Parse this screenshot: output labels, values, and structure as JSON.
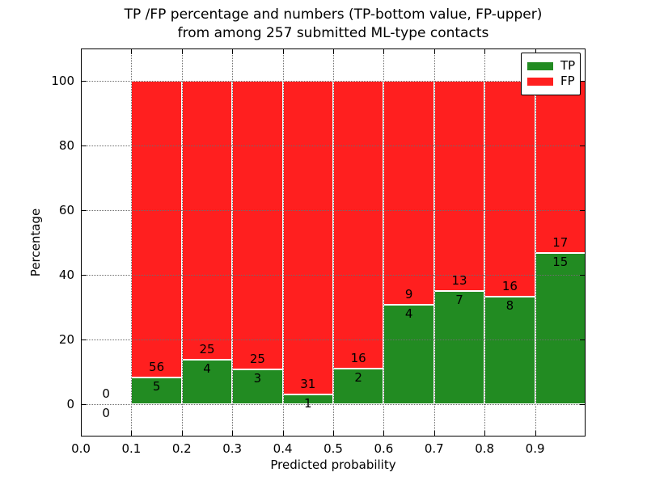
{
  "chart_data": {
    "type": "bar",
    "stacked": true,
    "title_lines": [
      "TP /FP percentage and numbers (TP-bottom value, FP-upper)",
      "from among 257 submitted ML-type contacts"
    ],
    "xlabel": "Predicted probability",
    "ylabel": "Percentage",
    "total_contacts": 257,
    "xlim": [
      0.0,
      1.0
    ],
    "ylim": [
      -10,
      110
    ],
    "xtick_values": [
      0.0,
      0.1,
      0.2,
      0.3,
      0.4,
      0.5,
      0.6,
      0.7,
      0.8,
      0.9
    ],
    "xtick_labels": [
      "0.0",
      "0.1",
      "0.2",
      "0.3",
      "0.4",
      "0.5",
      "0.6",
      "0.7",
      "0.8",
      "0.9"
    ],
    "ytick_values": [
      0,
      20,
      40,
      60,
      80,
      100
    ],
    "ytick_labels": [
      "0",
      "20",
      "40",
      "60",
      "80",
      "100"
    ],
    "grid": "dotted",
    "legend_position": "upper right",
    "series": [
      {
        "name": "TP",
        "color": "#228b22"
      },
      {
        "name": "FP",
        "color": "#ff1f1f"
      }
    ],
    "bins": [
      {
        "x0": 0.0,
        "x1": 0.1,
        "tp_count": 0,
        "fp_count": 0,
        "tp_pct": 0.0
      },
      {
        "x0": 0.1,
        "x1": 0.2,
        "tp_count": 5,
        "fp_count": 56,
        "tp_pct": 8.2
      },
      {
        "x0": 0.2,
        "x1": 0.3,
        "tp_count": 4,
        "fp_count": 25,
        "tp_pct": 13.8
      },
      {
        "x0": 0.3,
        "x1": 0.4,
        "tp_count": 3,
        "fp_count": 25,
        "tp_pct": 10.7
      },
      {
        "x0": 0.4,
        "x1": 0.5,
        "tp_count": 1,
        "fp_count": 31,
        "tp_pct": 3.1
      },
      {
        "x0": 0.5,
        "x1": 0.6,
        "tp_count": 2,
        "fp_count": 16,
        "tp_pct": 11.1
      },
      {
        "x0": 0.6,
        "x1": 0.7,
        "tp_count": 4,
        "fp_count": 9,
        "tp_pct": 30.8
      },
      {
        "x0": 0.7,
        "x1": 0.8,
        "tp_count": 7,
        "fp_count": 13,
        "tp_pct": 35.0
      },
      {
        "x0": 0.8,
        "x1": 0.9,
        "tp_count": 8,
        "fp_count": 16,
        "tp_pct": 33.3
      },
      {
        "x0": 0.9,
        "x1": 1.0,
        "tp_count": 15,
        "fp_count": 17,
        "tp_pct": 46.9
      }
    ],
    "colors": {
      "tp_green": "#228b22",
      "fp_red": "#ff1f1f",
      "grid_dots": "#6e6e6e",
      "bar_edge": "#ffffff",
      "spine": "#000000",
      "background": "#ffffff"
    }
  }
}
